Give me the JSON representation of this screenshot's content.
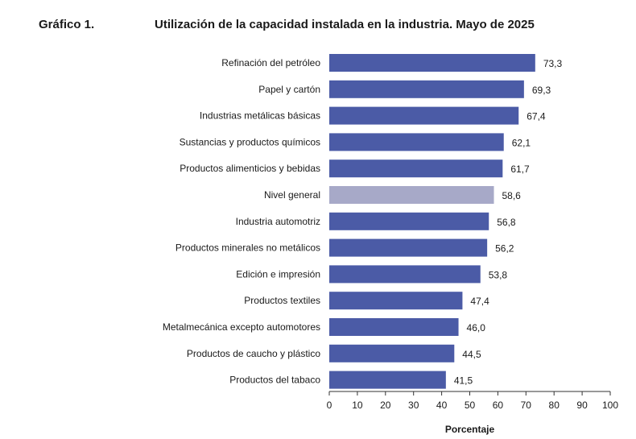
{
  "header": {
    "figure_label": "Gráfico 1.",
    "title": "Utilización de la capacidad instalada en la industria. Mayo de 2025"
  },
  "chart_data": {
    "type": "bar",
    "orientation": "horizontal",
    "title": "Utilización de la capacidad instalada en la industria. Mayo de 2025",
    "xlabel": "Porcentaje",
    "ylabel": "",
    "xlim": [
      0,
      100
    ],
    "xticks": [
      0,
      10,
      20,
      30,
      40,
      50,
      60,
      70,
      80,
      90,
      100
    ],
    "grid": false,
    "categories": [
      "Refinación del petróleo",
      "Papel y cartón",
      "Industrias metálicas básicas",
      "Sustancias y productos químicos",
      "Productos alimenticios y bebidas",
      "Nivel general",
      "Industria automotriz",
      "Productos minerales no metálicos",
      "Edición e impresión",
      "Productos textiles",
      "Metalmecánica excepto automotores",
      "Productos de caucho y plástico",
      "Productos del tabaco"
    ],
    "values": [
      73.3,
      69.3,
      67.4,
      62.1,
      61.7,
      58.6,
      56.8,
      56.2,
      53.8,
      47.4,
      46.0,
      44.5,
      41.5
    ],
    "value_labels": [
      "73,3",
      "69,3",
      "67,4",
      "62,1",
      "61,7",
      "58,6",
      "56,8",
      "56,2",
      "53,8",
      "47,4",
      "46,0",
      "44,5",
      "41,5"
    ],
    "highlight_category": "Nivel general",
    "colors": {
      "bar": "#4b5ba6",
      "highlight": "#a7a9c8",
      "axis": "#333333"
    }
  }
}
